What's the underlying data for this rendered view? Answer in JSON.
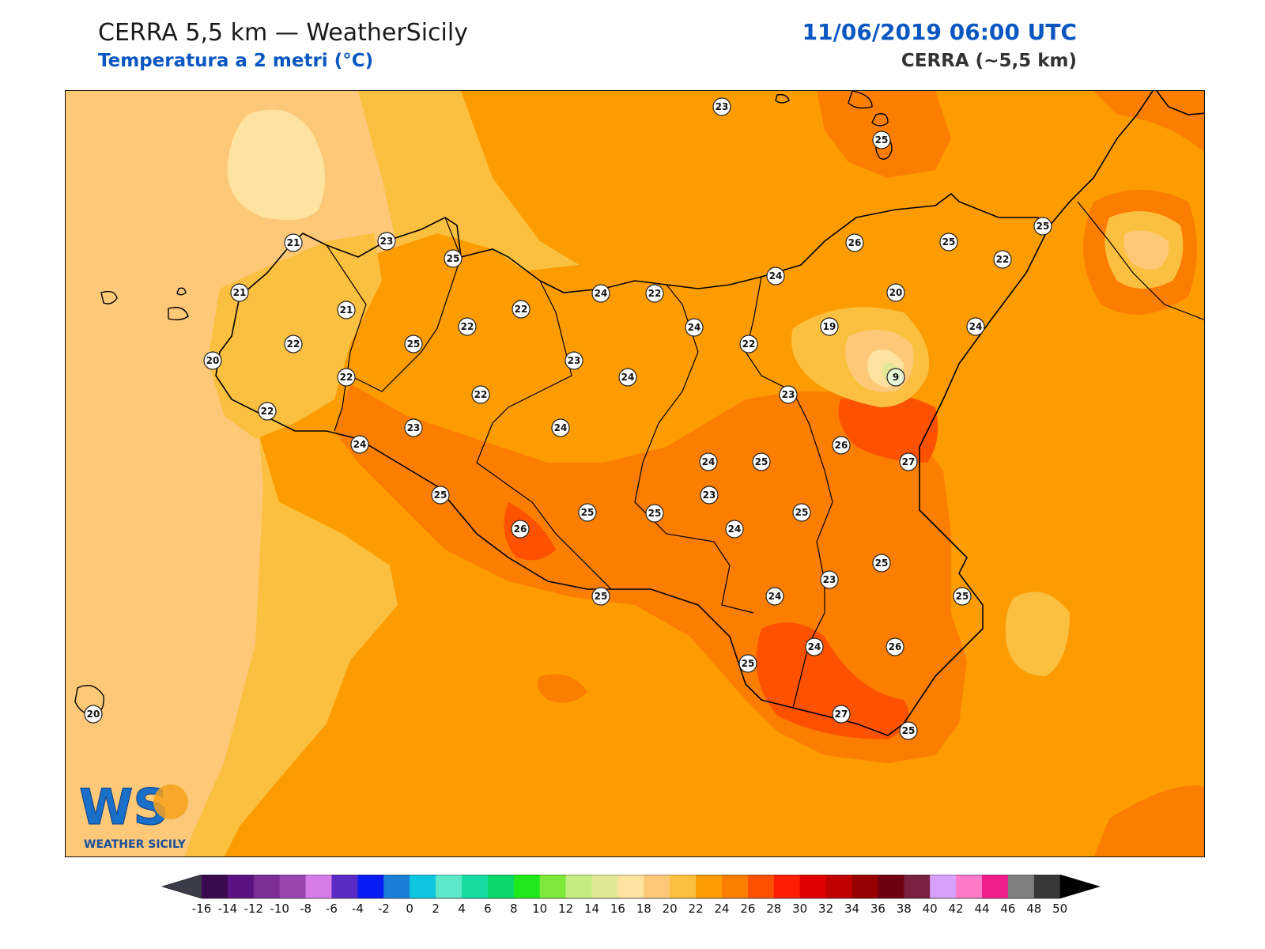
{
  "header": {
    "title": "CERRA 5,5 km — WeatherSicily",
    "subtitle": "Temperatura a 2 metri (°C)",
    "datetime": "11/06/2019 06:00 UTC",
    "model": "CERRA (~5,5 km)"
  },
  "logo": {
    "monogram": "WS",
    "text": "WEATHER SICILY",
    "icon": "weather-sicily-logo"
  },
  "colorbar": {
    "ticks": [
      -16,
      -14,
      -12,
      -10,
      -8,
      -6,
      -4,
      -2,
      0,
      2,
      4,
      6,
      8,
      10,
      12,
      14,
      16,
      18,
      20,
      22,
      24,
      26,
      28,
      30,
      32,
      34,
      36,
      38,
      40,
      42,
      44,
      46,
      48,
      50
    ],
    "colors": [
      "#3a0a4f",
      "#5c1382",
      "#7b2e96",
      "#9a46b0",
      "#d77be8",
      "#5a2bc4",
      "#0a1cf5",
      "#1a7fd6",
      "#0fc6e0",
      "#5be8c8",
      "#14dca0",
      "#0ad86a",
      "#20e81a",
      "#7ee83a",
      "#c4ec80",
      "#e0e896",
      "#fde2a0",
      "#fdc878",
      "#fcc040",
      "#fc9c00",
      "#fc7e00",
      "#fc5200",
      "#fc1e00",
      "#e00000",
      "#c00000",
      "#960000",
      "#6e0010",
      "#7a2040",
      "#d8a0fc",
      "#fc7ac8",
      "#f01e8c",
      "#808080",
      "#383838"
    ],
    "left_color": "#3b3b4a",
    "right_color": "#000000"
  },
  "stations": [
    {
      "label": "23"
    },
    {
      "label": "25"
    },
    {
      "label": "21"
    },
    {
      "label": "23"
    },
    {
      "label": "25"
    },
    {
      "label": "21"
    },
    {
      "label": "21"
    },
    {
      "label": "22"
    },
    {
      "label": "20"
    },
    {
      "label": "22"
    },
    {
      "label": "22"
    },
    {
      "label": "25"
    },
    {
      "label": "22"
    },
    {
      "label": "22"
    },
    {
      "label": "22"
    },
    {
      "label": "24"
    },
    {
      "label": "23"
    },
    {
      "label": "22"
    },
    {
      "label": "23"
    },
    {
      "label": "24"
    },
    {
      "label": "23"
    },
    {
      "label": "24"
    },
    {
      "label": "25"
    },
    {
      "label": "26"
    },
    {
      "label": "25"
    },
    {
      "label": "26"
    },
    {
      "label": "25"
    },
    {
      "label": "24"
    },
    {
      "label": "25"
    },
    {
      "label": "24"
    },
    {
      "label": "22"
    },
    {
      "label": "24"
    },
    {
      "label": "24"
    },
    {
      "label": "20"
    },
    {
      "label": "19"
    },
    {
      "label": "9"
    },
    {
      "label": "25"
    },
    {
      "label": "22"
    },
    {
      "label": "24"
    },
    {
      "label": "23"
    },
    {
      "label": "26"
    },
    {
      "label": "25"
    },
    {
      "label": "27"
    },
    {
      "label": "24"
    },
    {
      "label": "25"
    },
    {
      "label": "25"
    },
    {
      "label": "24"
    },
    {
      "label": "23"
    },
    {
      "label": "25"
    },
    {
      "label": "25"
    },
    {
      "label": "25"
    },
    {
      "label": "24"
    },
    {
      "label": "26"
    },
    {
      "label": "27"
    },
    {
      "label": "25"
    },
    {
      "label": "20"
    }
  ]
}
